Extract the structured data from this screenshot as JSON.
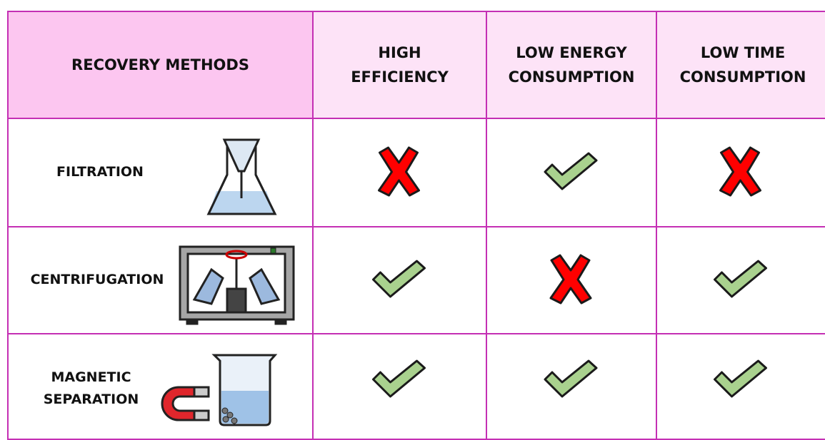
{
  "table": {
    "header": [
      "RECOVERY METHODS",
      "HIGH EFFICIENCY",
      "LOW ENERGY CONSUMPTION",
      "LOW TIME CONSUMPTION"
    ],
    "rows": [
      {
        "label": "FILTRATION",
        "values": [
          false,
          true,
          false
        ]
      },
      {
        "label": "CENTRIFUGATION",
        "values": [
          true,
          false,
          true
        ]
      },
      {
        "label": "MAGNETIC SEPARATION",
        "values": [
          true,
          true,
          true
        ]
      }
    ]
  }
}
